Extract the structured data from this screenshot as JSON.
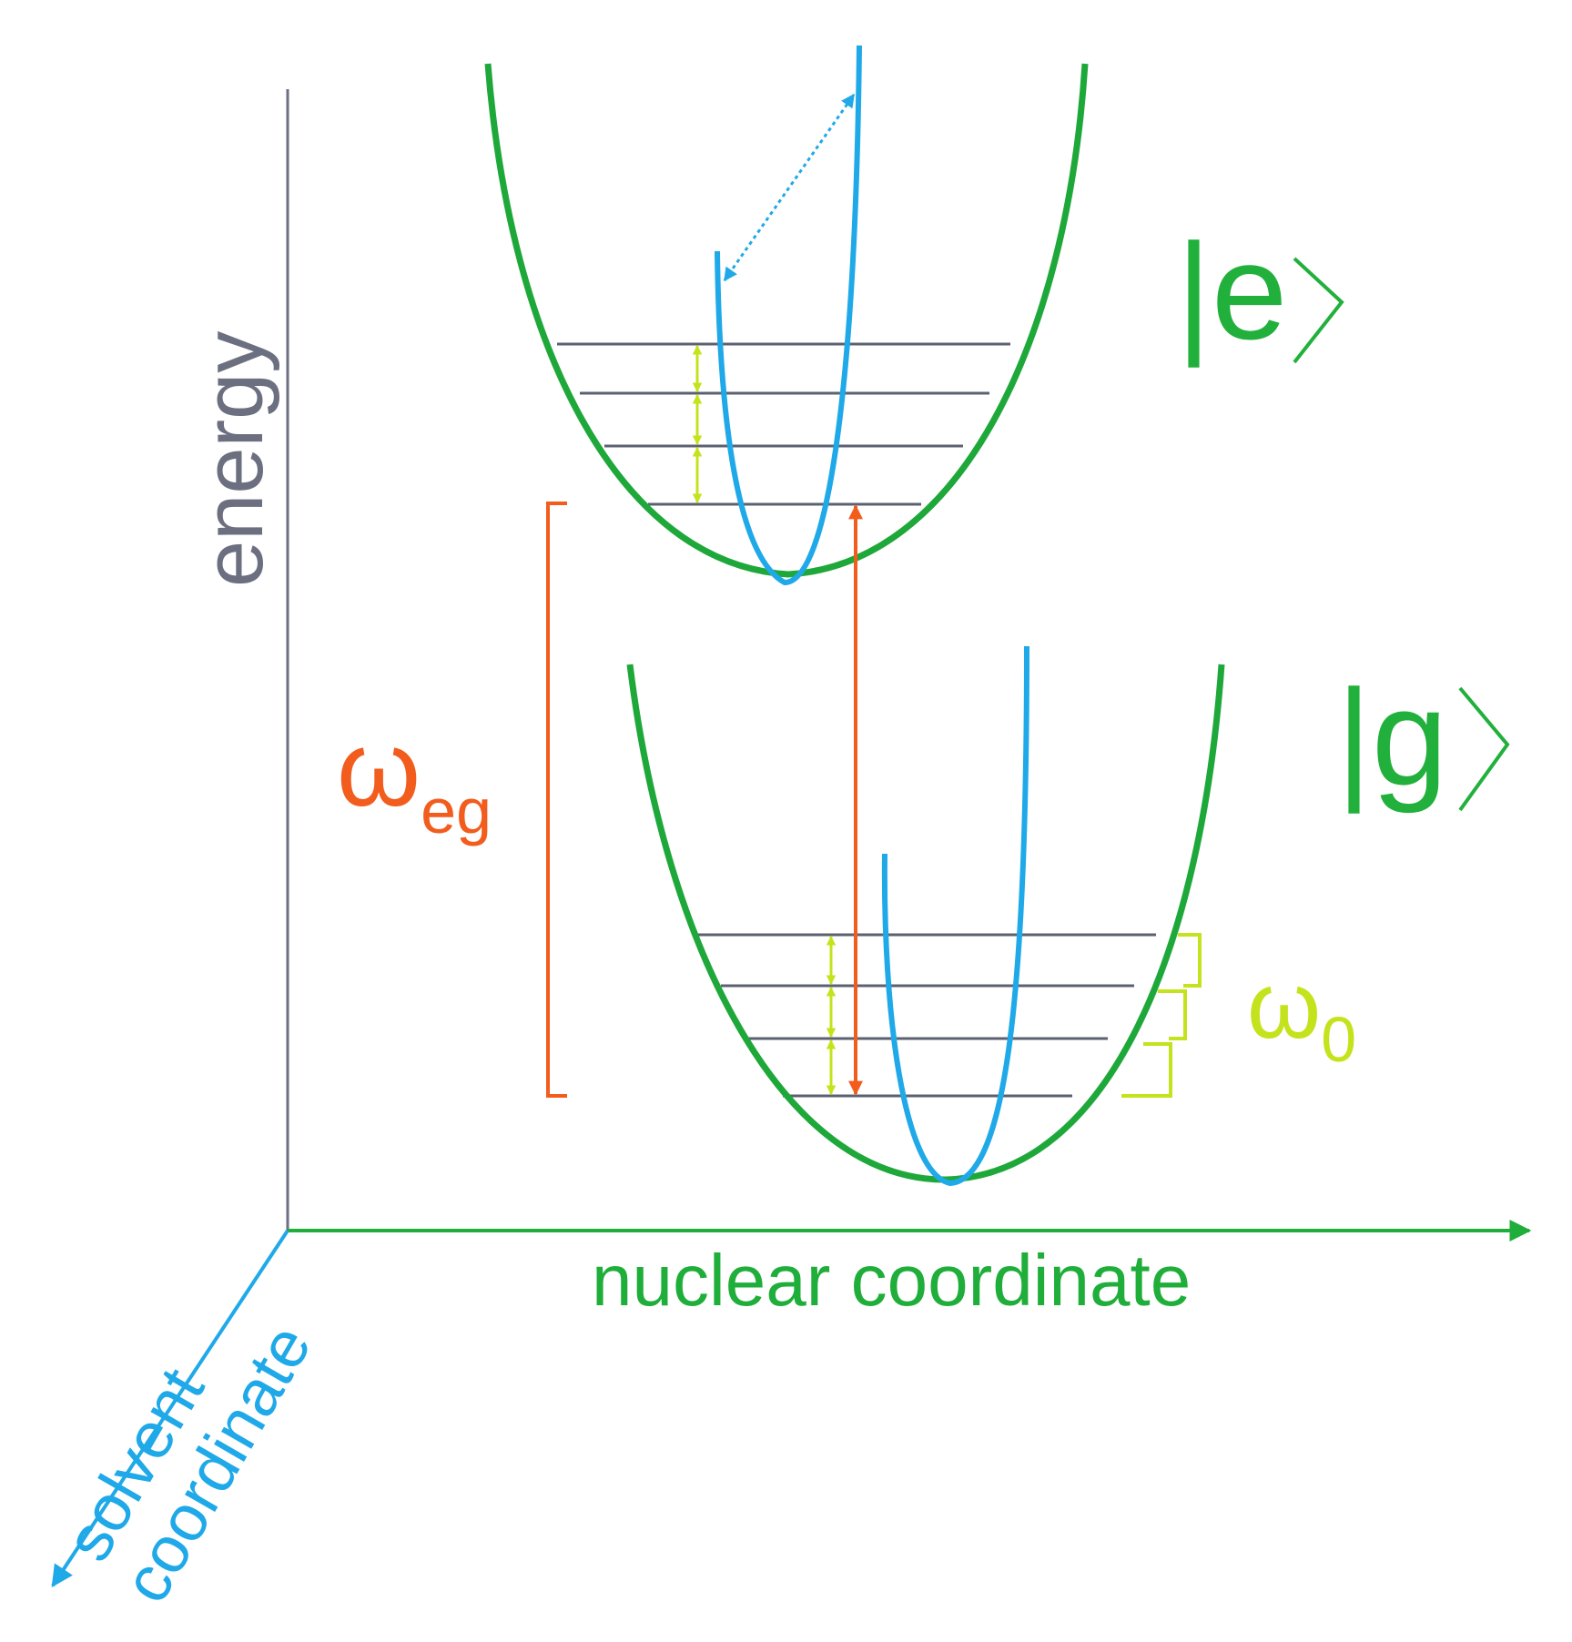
{
  "axes": {
    "energy_label": "energy",
    "nuclear_label": "nuclear coordinate",
    "solvent_label_line1": "solvent",
    "solvent_label_line2": "coordinate"
  },
  "states": {
    "excited_label": "|e",
    "ground_label": "|g"
  },
  "gaps": {
    "electronic_symbol": "ω",
    "electronic_subscript": "eg",
    "vibrational_symbol": "ω",
    "vibrational_subscript": "0"
  },
  "colors": {
    "axis_energy": "#6b6f80",
    "nuclear_axis": "#1fae3a",
    "potential_curve": "#1fa83a",
    "solvent_curve": "#1fa9e8",
    "vibrational_level": "#5c6070",
    "omega_eg": "#f25c1d",
    "omega_0": "#c5e31c",
    "ket_text": "#22b03c"
  }
}
